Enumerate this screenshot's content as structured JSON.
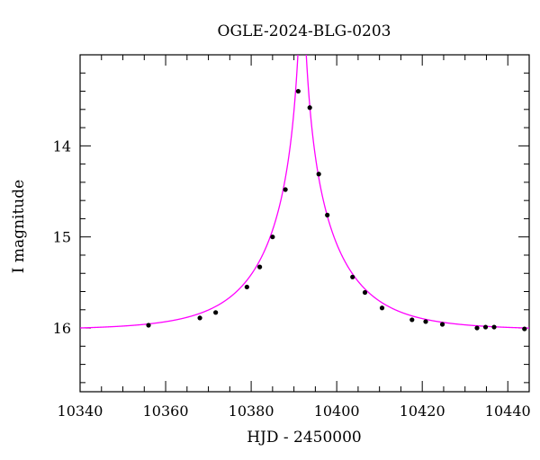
{
  "chart_data": {
    "type": "scatter",
    "title": "OGLE-2024-BLG-0203",
    "xlabel": "HJD - 2450000",
    "ylabel": "I magnitude",
    "xlim": [
      10340,
      10445
    ],
    "ylim": [
      16.7,
      13.0
    ],
    "y_inverted": true,
    "x_ticks": [
      10340,
      10360,
      10380,
      10400,
      10420,
      10440
    ],
    "y_ticks": [
      14,
      15,
      16
    ],
    "grid": false,
    "model_color": "#ff00ff",
    "point_color": "#000000",
    "series": [
      {
        "x": [
          10356,
          10368,
          10371.7,
          10379,
          10382,
          10385,
          10388,
          10391,
          10393.7,
          10395.8,
          10397.8,
          10403.7,
          10406.6,
          10410.6,
          10417.6,
          10420.8,
          10424.7,
          10432.8,
          10434.8,
          10436.8,
          10443.9
        ],
        "y": [
          15.97,
          15.89,
          15.83,
          15.55,
          15.33,
          15.0,
          14.48,
          13.4,
          13.58,
          14.31,
          14.76,
          15.44,
          15.61,
          15.78,
          15.91,
          15.93,
          15.96,
          16.0,
          15.99,
          15.99,
          16.01
        ]
      }
    ]
  }
}
